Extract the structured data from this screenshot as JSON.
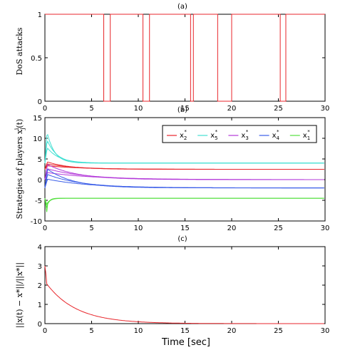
{
  "xlabel": "Time [sec]",
  "chart_data": [
    {
      "type": "line",
      "subtitle": "(a)",
      "ylabel": "DoS attacks",
      "xlim": [
        0,
        30
      ],
      "ylim": [
        0,
        1
      ],
      "xticks": [
        "0",
        "5",
        "10",
        "15",
        "20",
        "25",
        "30"
      ],
      "yticks": [
        "0",
        "0.5",
        "1"
      ],
      "attack_intervals": [
        [
          6.3,
          7.0
        ],
        [
          10.5,
          11.2
        ],
        [
          15.6,
          15.9
        ],
        [
          18.5,
          20.0
        ],
        [
          25.2,
          25.8
        ]
      ],
      "color": "#e8262b"
    },
    {
      "type": "line",
      "subtitle": "(b)",
      "ylabel": "Strategies of players x",
      "ylabel_suffix": "(t)",
      "xlim": [
        0,
        30
      ],
      "ylim": [
        -10,
        15
      ],
      "xticks": [
        "0",
        "5",
        "10",
        "15",
        "20",
        "25",
        "30"
      ],
      "yticks": [
        "-10",
        "-5",
        "0",
        "5",
        "10",
        "15"
      ],
      "legend_position": "top-right",
      "series": [
        {
          "name": "x",
          "sub": "2",
          "color": "#e8262b",
          "final": 2.5,
          "peak": 4.5,
          "tau": 3.0
        },
        {
          "name": "x",
          "sub": "5",
          "color": "#43e0d3",
          "final": 4.0,
          "peak": 14.0,
          "tau": 1.0
        },
        {
          "name": "x",
          "sub": "3",
          "color": "#b339d9",
          "final": 0.0,
          "peak": 4.0,
          "tau": 4.0
        },
        {
          "name": "x",
          "sub": "4",
          "color": "#3b5ee8",
          "final": -2.0,
          "peak": 3.0,
          "tau": 3.5
        },
        {
          "name": "x",
          "sub": "1",
          "color": "#55e040",
          "final": -4.5,
          "peak": -9.5,
          "tau": 0.3
        }
      ]
    },
    {
      "type": "line",
      "subtitle": "(c)",
      "ylabel": "||x(t) − x*||/||x*||",
      "xlim": [
        0,
        30
      ],
      "ylim": [
        0,
        4
      ],
      "xticks": [
        "0",
        "5",
        "10",
        "15",
        "20",
        "25",
        "30"
      ],
      "yticks": [
        "0",
        "1",
        "2",
        "3",
        "4"
      ],
      "series": [
        {
          "name": "",
          "color": "#e8262b",
          "start": 2.2,
          "tau": 3.2
        }
      ]
    }
  ]
}
